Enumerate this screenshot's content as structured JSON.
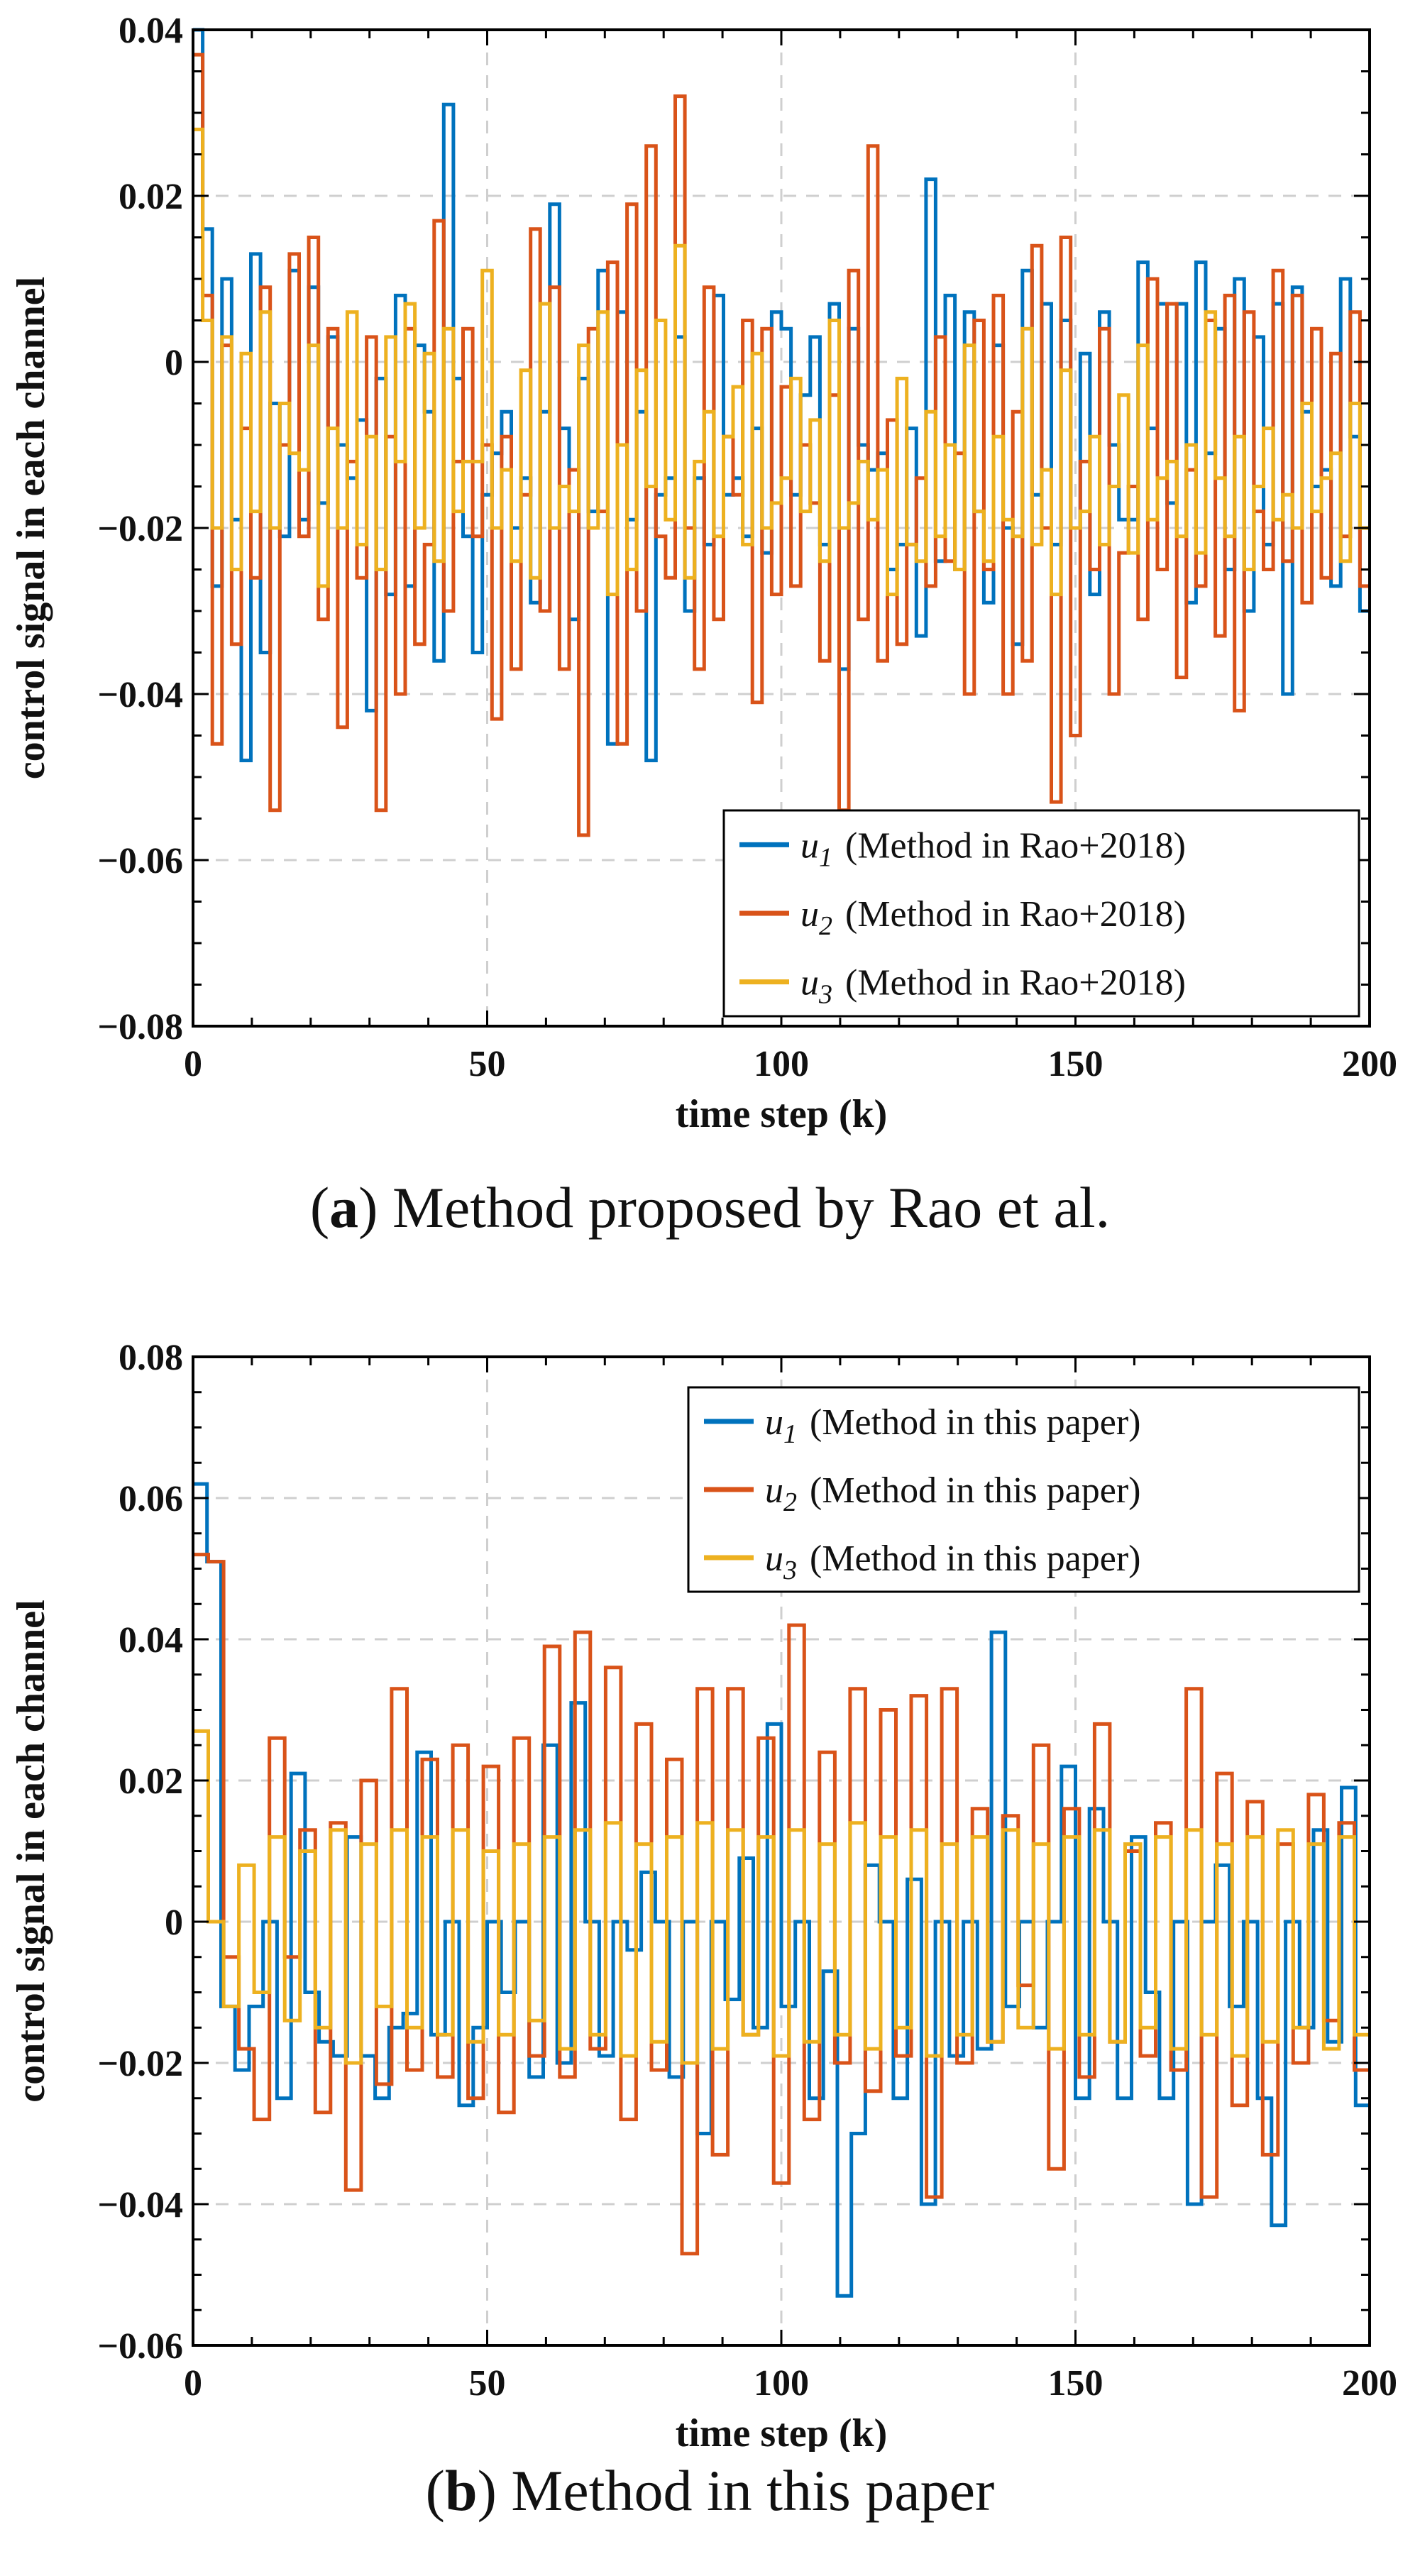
{
  "chart_data": [
    {
      "id": "a",
      "type": "line",
      "style": "stairs",
      "caption_label": "a",
      "caption_text": "Method proposed by Rao et al.",
      "xlabel": "time step (k)",
      "ylabel": "control signal in each channel",
      "xlim": [
        0,
        200
      ],
      "ylim": [
        -0.08,
        0.04
      ],
      "xticks": [
        "0",
        "50",
        "100",
        "150",
        "200"
      ],
      "yticks": [
        "−0.08",
        "−0.06",
        "−0.04",
        "−0.02",
        "0",
        "0.02",
        "0.04"
      ],
      "ytick_values": [
        -0.08,
        -0.06,
        -0.04,
        -0.02,
        0,
        0.02,
        0.04
      ],
      "grid": true,
      "legend_position": "bottom-right",
      "series": [
        {
          "name": "u1",
          "sym": "u",
          "sub": "1",
          "label": "(Method  in  Rao+2018)",
          "color": "#0072BD",
          "values": [
            0.04,
            0.016,
            -0.027,
            0.01,
            -0.019,
            -0.048,
            0.013,
            -0.035,
            -0.005,
            -0.021,
            0.011,
            -0.019,
            0.009,
            -0.017,
            0.003,
            -0.01,
            -0.014,
            -0.007,
            -0.042,
            -0.002,
            -0.028,
            0.008,
            -0.027,
            0.002,
            -0.006,
            -0.036,
            0.031,
            -0.002,
            -0.021,
            -0.035,
            -0.016,
            -0.011,
            -0.006,
            -0.02,
            -0.014,
            -0.029,
            -0.006,
            0.019,
            -0.008,
            -0.031,
            -0.002,
            -0.018,
            0.011,
            -0.046,
            0.006,
            -0.019,
            -0.006,
            -0.048,
            -0.016,
            -0.014,
            0.003,
            -0.03,
            -0.014,
            -0.022,
            0.008,
            -0.016,
            -0.014,
            -0.021,
            -0.008,
            -0.023,
            0.006,
            0.004,
            -0.016,
            -0.004,
            0.003,
            -0.022,
            0.007,
            -0.037,
            0.004,
            -0.01,
            -0.013,
            -0.011,
            -0.025,
            -0.022,
            -0.008,
            -0.033,
            0.022,
            -0.024,
            0.008,
            -0.025,
            0.006,
            -0.018,
            -0.029,
            0.002,
            -0.02,
            -0.034,
            0.011,
            -0.016,
            0.007,
            -0.022,
            0.005,
            -0.02,
            0.001,
            -0.028,
            0.006,
            -0.01,
            -0.019,
            -0.019,
            0.012,
            -0.008,
            0.007,
            -0.017,
            0.007,
            -0.029,
            0.012,
            -0.011,
            0.004,
            -0.025,
            0.01,
            -0.03,
            0.003,
            -0.022,
            0.007,
            -0.04,
            0.009,
            -0.006,
            -0.015,
            -0.013,
            -0.027,
            0.01,
            -0.009,
            -0.03
          ]
        },
        {
          "name": "u2",
          "sym": "u",
          "sub": "2",
          "label": "(Method  in  Rao+2018)",
          "color": "#D95319",
          "values": [
            0.037,
            0.008,
            -0.046,
            0.002,
            -0.034,
            -0.008,
            -0.026,
            0.009,
            -0.054,
            -0.01,
            0.013,
            -0.021,
            0.015,
            -0.031,
            0.004,
            -0.044,
            -0.012,
            -0.026,
            0.003,
            -0.054,
            -0.009,
            -0.04,
            0.004,
            -0.034,
            -0.022,
            0.017,
            -0.03,
            -0.012,
            0.004,
            -0.021,
            -0.01,
            -0.043,
            -0.009,
            -0.037,
            -0.016,
            0.016,
            -0.03,
            0.009,
            -0.037,
            -0.013,
            -0.057,
            0.004,
            -0.018,
            0.012,
            -0.046,
            0.019,
            -0.03,
            0.026,
            -0.021,
            -0.026,
            0.032,
            -0.02,
            -0.037,
            0.009,
            -0.031,
            -0.009,
            -0.016,
            0.005,
            -0.041,
            0.004,
            -0.028,
            -0.003,
            -0.027,
            -0.01,
            -0.017,
            -0.036,
            -0.004,
            -0.054,
            0.011,
            -0.031,
            0.026,
            -0.036,
            -0.007,
            -0.034,
            -0.022,
            -0.014,
            -0.027,
            0.003,
            -0.024,
            -0.011,
            -0.04,
            0.005,
            -0.025,
            0.008,
            -0.04,
            -0.006,
            -0.036,
            0.014,
            -0.02,
            -0.053,
            0.015,
            -0.045,
            -0.012,
            -0.025,
            0.004,
            -0.04,
            -0.023,
            -0.015,
            -0.031,
            0.01,
            -0.025,
            0.007,
            -0.038,
            -0.013,
            -0.027,
            0.005,
            -0.033,
            0.008,
            -0.042,
            0.006,
            -0.018,
            -0.025,
            0.011,
            -0.024,
            0.008,
            -0.029,
            0.004,
            -0.026,
            0.001,
            -0.021,
            0.006,
            -0.027
          ]
        },
        {
          "name": "u3",
          "sym": "u",
          "sub": "3",
          "label": "(Method  in  Rao+2018)",
          "color": "#EDB120",
          "values": [
            0.028,
            0.005,
            -0.02,
            0.003,
            -0.025,
            0.001,
            -0.018,
            0.006,
            -0.02,
            -0.005,
            -0.011,
            -0.013,
            0.002,
            -0.027,
            -0.008,
            -0.02,
            0.006,
            -0.022,
            -0.009,
            -0.025,
            0.003,
            -0.012,
            0.007,
            -0.02,
            0.001,
            -0.024,
            0.004,
            -0.018,
            -0.012,
            -0.012,
            0.011,
            -0.02,
            -0.013,
            -0.024,
            -0.001,
            -0.026,
            0.007,
            -0.02,
            -0.015,
            -0.018,
            0.002,
            -0.02,
            0.006,
            -0.028,
            -0.01,
            -0.025,
            -0.001,
            -0.015,
            0.005,
            -0.019,
            0.014,
            -0.026,
            -0.012,
            -0.006,
            -0.021,
            -0.009,
            -0.003,
            -0.022,
            0.001,
            -0.02,
            -0.017,
            -0.014,
            -0.002,
            -0.018,
            -0.007,
            -0.024,
            0.005,
            -0.02,
            -0.017,
            -0.012,
            -0.019,
            -0.013,
            -0.028,
            -0.002,
            -0.022,
            -0.024,
            -0.006,
            -0.021,
            -0.01,
            -0.025,
            0.002,
            -0.018,
            -0.024,
            -0.009,
            -0.019,
            -0.021,
            0.004,
            -0.022,
            -0.013,
            -0.028,
            -0.001,
            -0.02,
            -0.018,
            -0.009,
            -0.022,
            -0.015,
            -0.004,
            -0.023,
            0.002,
            -0.019,
            -0.014,
            -0.012,
            -0.021,
            -0.01,
            -0.023,
            0.006,
            -0.014,
            -0.021,
            -0.009,
            -0.025,
            -0.015,
            -0.008,
            -0.019,
            -0.016,
            -0.02,
            -0.005,
            -0.018,
            -0.014,
            -0.011,
            -0.024,
            -0.005,
            -0.02
          ]
        }
      ]
    },
    {
      "id": "b",
      "type": "line",
      "style": "stairs",
      "caption_label": "b",
      "caption_text": "Method in this paper",
      "xlabel": "time step (k)",
      "ylabel": "control signal in each channel",
      "xlim": [
        0,
        200
      ],
      "ylim": [
        -0.06,
        0.08
      ],
      "xticks": [
        "0",
        "50",
        "100",
        "150",
        "200"
      ],
      "yticks": [
        "−0.06",
        "−0.04",
        "−0.02",
        "0",
        "0.02",
        "0.04",
        "0.06",
        "0.08"
      ],
      "ytick_values": [
        -0.06,
        -0.04,
        -0.02,
        0,
        0.02,
        0.04,
        0.06,
        0.08
      ],
      "grid": true,
      "legend_position": "top-right",
      "series": [
        {
          "name": "u1",
          "sym": "u",
          "sub": "1",
          "label": "(Method  in  this  paper)",
          "color": "#0072BD",
          "values": [
            0.062,
            0.051,
            -0.012,
            -0.021,
            -0.012,
            0.0,
            -0.025,
            0.021,
            -0.01,
            -0.017,
            -0.019,
            0.012,
            -0.019,
            -0.025,
            -0.015,
            -0.013,
            0.024,
            -0.016,
            0.0,
            -0.026,
            -0.015,
            0.0,
            -0.01,
            0.0,
            -0.022,
            0.025,
            -0.02,
            0.031,
            0.0,
            -0.019,
            0.0,
            -0.004,
            0.007,
            0.0,
            -0.022,
            0.0,
            -0.03,
            0.0,
            -0.011,
            0.009,
            -0.015,
            0.028,
            -0.012,
            0.0,
            -0.025,
            -0.007,
            -0.053,
            -0.03,
            0.008,
            0.0,
            -0.025,
            0.006,
            -0.04,
            0.0,
            -0.019,
            0.0,
            -0.018,
            0.041,
            -0.012,
            0.0,
            -0.015,
            0.0,
            0.022,
            -0.025,
            0.016,
            0.0,
            -0.025,
            0.012,
            -0.01,
            -0.025,
            0.0,
            -0.04,
            0.0,
            0.008,
            -0.012,
            0.0,
            -0.025,
            -0.043,
            0.0,
            -0.015,
            0.013,
            -0.017,
            0.019,
            -0.026
          ]
        },
        {
          "name": "u2",
          "sym": "u",
          "sub": "2",
          "label": "(Method  in  this  paper)",
          "color": "#D95319",
          "values": [
            0.052,
            0.051,
            -0.005,
            -0.018,
            -0.028,
            0.026,
            -0.005,
            0.013,
            -0.027,
            0.014,
            -0.038,
            0.02,
            -0.023,
            0.033,
            -0.021,
            0.023,
            -0.022,
            0.025,
            -0.025,
            0.022,
            -0.027,
            0.026,
            -0.019,
            0.039,
            -0.022,
            0.041,
            -0.018,
            0.036,
            -0.028,
            0.028,
            -0.021,
            0.023,
            -0.047,
            0.033,
            -0.033,
            0.033,
            -0.016,
            0.026,
            -0.037,
            0.042,
            -0.028,
            0.024,
            -0.02,
            0.033,
            -0.024,
            0.03,
            -0.019,
            0.032,
            -0.039,
            0.033,
            -0.02,
            0.016,
            -0.017,
            0.015,
            -0.009,
            0.025,
            -0.035,
            0.016,
            -0.022,
            0.028,
            -0.017,
            0.01,
            -0.019,
            0.014,
            -0.021,
            0.033,
            -0.039,
            0.021,
            -0.026,
            0.017,
            -0.033,
            0.011,
            -0.02,
            0.018,
            -0.014,
            0.014,
            -0.021
          ]
        },
        {
          "name": "u3",
          "sym": "u",
          "sub": "3",
          "label": "(Method  in  this  paper)",
          "color": "#EDB120",
          "values": [
            0.027,
            0.0,
            -0.012,
            0.008,
            -0.01,
            0.012,
            -0.014,
            0.01,
            -0.015,
            0.013,
            -0.02,
            0.011,
            -0.012,
            0.013,
            -0.015,
            0.012,
            -0.016,
            0.013,
            -0.017,
            0.01,
            -0.016,
            0.011,
            -0.014,
            0.012,
            -0.018,
            0.013,
            -0.016,
            0.014,
            -0.019,
            0.011,
            -0.017,
            0.012,
            -0.02,
            0.014,
            -0.018,
            0.013,
            -0.016,
            0.012,
            -0.019,
            0.013,
            -0.017,
            0.011,
            -0.016,
            0.014,
            -0.018,
            0.012,
            -0.015,
            0.013,
            -0.019,
            0.011,
            -0.016,
            0.012,
            -0.017,
            0.013,
            -0.015,
            0.011,
            -0.018,
            0.012,
            -0.016,
            0.013,
            -0.017,
            0.011,
            -0.015,
            0.012,
            -0.018,
            0.013,
            -0.016,
            0.011,
            -0.019,
            0.012,
            -0.017,
            0.013,
            -0.015,
            0.011,
            -0.018,
            0.012,
            -0.016
          ]
        }
      ]
    }
  ]
}
